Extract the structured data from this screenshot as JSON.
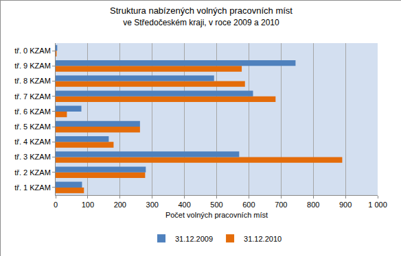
{
  "chart_data": {
    "type": "bar",
    "orientation": "horizontal",
    "title": "Struktura nabízených volných pracovních míst",
    "subtitle": "ve Středočeském kraji, v roce 2009 a 2010",
    "x_label": "Počet volných pracovních míst",
    "categories": [
      "tř. 1 KZAM",
      "tř. 2 KZAM",
      "tř. 3 KZAM",
      "tř. 4 KZAM",
      "tř. 5 KZAM",
      "tř. 6 KZAM",
      "tř. 7 KZAM",
      "tř. 8 KZAM",
      "tř. 9 KZAM",
      "tř. 0 KZAM"
    ],
    "series": [
      {
        "name": "31.12.2009",
        "color": "#4f81bd",
        "values": [
          82,
          280,
          570,
          165,
          262,
          80,
          613,
          492,
          745,
          5
        ]
      },
      {
        "name": "31.12.2010",
        "color": "#e46c0a",
        "values": [
          88,
          278,
          890,
          180,
          262,
          35,
          683,
          588,
          578,
          3
        ]
      }
    ],
    "xlim": [
      0,
      1000
    ],
    "xticks": [
      0,
      100,
      200,
      300,
      400,
      500,
      600,
      700,
      800,
      900,
      {
        "value": 1000,
        "label": "1 000"
      }
    ],
    "grid": true,
    "legend": "bottom"
  }
}
